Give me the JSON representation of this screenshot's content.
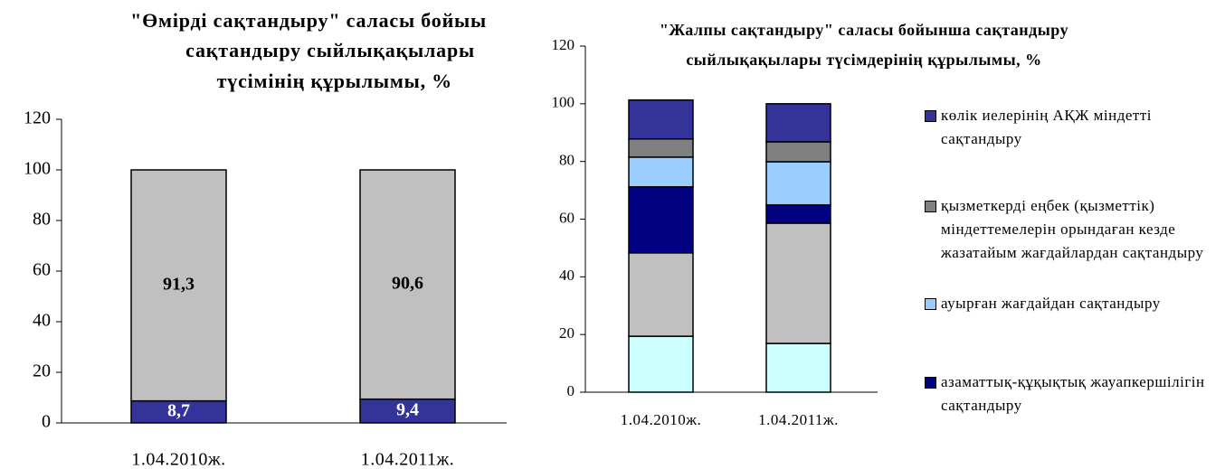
{
  "chart_data": [
    {
      "type": "bar",
      "stacked": true,
      "title": [
        "\"Өмірді сақтандыру\" саласы бойыы",
        "сақтандыру сыйлықақылары",
        "түсімінің құрылымы,  %"
      ],
      "categories": [
        "1.04.2010ж.",
        "1.04.2011ж."
      ],
      "series": [
        {
          "color": "#333399",
          "values": [
            8.7,
            9.4
          ],
          "value_labels": [
            "8,7",
            "9,4"
          ]
        },
        {
          "color": "#c0c0c0",
          "values": [
            91.3,
            90.6
          ],
          "value_labels": [
            "91,3",
            "90,6"
          ]
        }
      ],
      "ylim": [
        0,
        120
      ],
      "yticks": [
        0,
        20,
        40,
        60,
        80,
        100,
        120
      ]
    },
    {
      "type": "bar",
      "stacked": true,
      "title": [
        "\"Жалпы сақтандыру\" саласы бойынша сақтандыру",
        "сыйлықақылары түсімдерінің құрылымы, %"
      ],
      "categories": [
        "1.04.2010ж.",
        "1.04.2011ж."
      ],
      "series": [
        {
          "color": "#ccffff",
          "values": [
            19.4,
            16.9
          ]
        },
        {
          "color": "#c0c0c0",
          "values": [
            28.9,
            41.7
          ]
        },
        {
          "name": "азаматтық-құқықтық жауапкершілігін сақтандыру",
          "color": "#000080",
          "values": [
            22.9,
            6.3
          ]
        },
        {
          "name": "ауырған жағдайдан сақтандыру",
          "color": "#99ccff",
          "values": [
            10.3,
            15.0
          ]
        },
        {
          "name": "қызметкерді еңбек (қызметтік) міндеттемелерін орындаған кезде жазатайым жағдайлардан сақтандыру",
          "color": "#808080",
          "values": [
            6.3,
            6.9
          ]
        },
        {
          "name": "көлік иелерінің АҚЖ міндетті сақтандыру",
          "color": "#333399",
          "values": [
            13.5,
            13.2
          ]
        }
      ],
      "ylim": [
        0,
        120
      ],
      "yticks": [
        0,
        20,
        40,
        60,
        80,
        100,
        120
      ]
    }
  ]
}
